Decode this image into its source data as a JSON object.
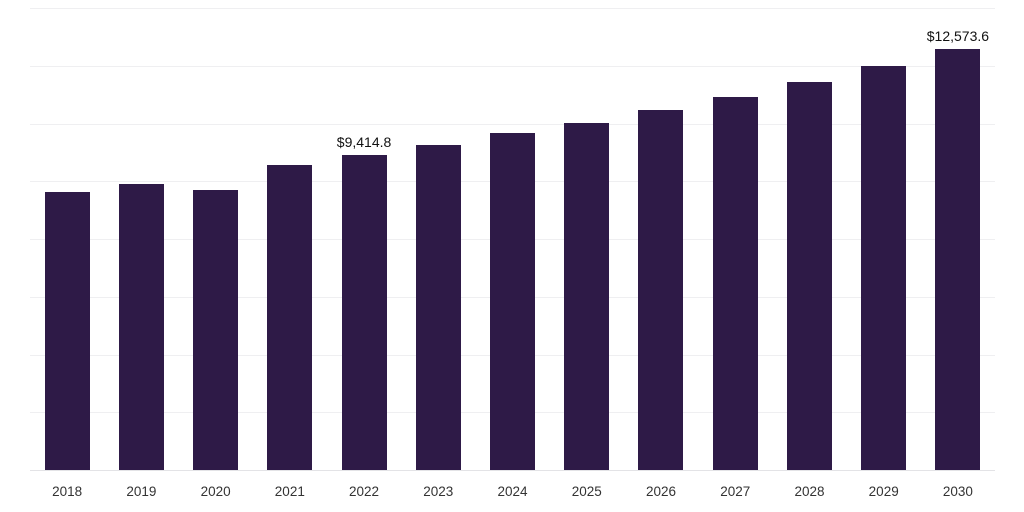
{
  "chart_data": {
    "type": "bar",
    "categories": [
      "2018",
      "2019",
      "2020",
      "2021",
      "2022",
      "2023",
      "2024",
      "2025",
      "2026",
      "2027",
      "2028",
      "2029",
      "2030"
    ],
    "values": [
      8305,
      8540,
      8365,
      9105,
      9414.8,
      9700,
      10055,
      10380,
      10740,
      11150,
      11595,
      12070,
      12573.6
    ],
    "title": "",
    "xlabel": "",
    "ylabel": "",
    "ylim": [
      0,
      13800
    ],
    "grid": true,
    "gridline_count": 9,
    "legend": "none",
    "bar_color": "#2e1a47",
    "background_color": "#ffffff",
    "annotations": [
      {
        "category": "2022",
        "label": "$9,414.8"
      },
      {
        "category": "2030",
        "label": "$12,573.6"
      }
    ]
  }
}
